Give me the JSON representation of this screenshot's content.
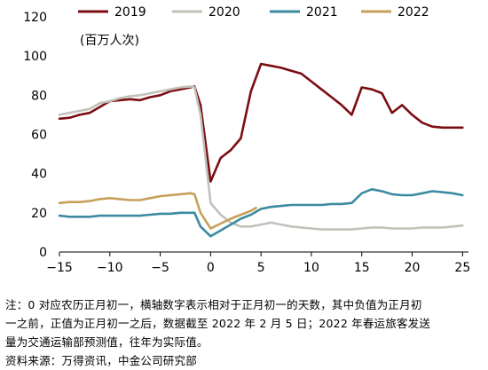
{
  "chart_data": {
    "type": "line",
    "title": "",
    "xlabel": "",
    "ylabel": "(百万人次)",
    "xlim": [
      -15,
      25.5
    ],
    "ylim": [
      0,
      120
    ],
    "x_ticks": [
      -15,
      -10,
      -5,
      0,
      5,
      10,
      15,
      20,
      25
    ],
    "x_tick_labels": [
      "−15",
      "−10",
      "−5",
      "0",
      "5",
      "10",
      "15",
      "20",
      "25"
    ],
    "y_ticks": [
      0,
      20,
      40,
      60,
      80,
      100,
      120
    ],
    "y_tick_labels": [
      "0",
      "20",
      "40",
      "60",
      "80",
      "100",
      "120"
    ],
    "grid": false,
    "legend_position": "top",
    "series": [
      {
        "name": "2019",
        "color": "#7b0d12",
        "points": [
          [
            -15,
            68
          ],
          [
            -14,
            68.5
          ],
          [
            -13,
            70
          ],
          [
            -12,
            71
          ],
          [
            -11,
            74
          ],
          [
            -10,
            77
          ],
          [
            -9,
            77.5
          ],
          [
            -8,
            78
          ],
          [
            -7,
            77.5
          ],
          [
            -6,
            79
          ],
          [
            -5,
            80
          ],
          [
            -4,
            82
          ],
          [
            -3,
            83
          ],
          [
            -2,
            84
          ],
          [
            -1.6,
            84.5
          ],
          [
            -1,
            75
          ],
          [
            0,
            36
          ],
          [
            1,
            48
          ],
          [
            2,
            52
          ],
          [
            3,
            58
          ],
          [
            4,
            82
          ],
          [
            5,
            96
          ],
          [
            6,
            95
          ],
          [
            7,
            94
          ],
          [
            8,
            92.5
          ],
          [
            9,
            91
          ],
          [
            10,
            87
          ],
          [
            11,
            83
          ],
          [
            12,
            79
          ],
          [
            13,
            75
          ],
          [
            14,
            70
          ],
          [
            15,
            84
          ],
          [
            16,
            83
          ],
          [
            17,
            81
          ],
          [
            18,
            71
          ],
          [
            19,
            75
          ],
          [
            20,
            70
          ],
          [
            21,
            66
          ],
          [
            22,
            64
          ],
          [
            23,
            63.5
          ],
          [
            24,
            63.5
          ],
          [
            25,
            63.5
          ]
        ]
      },
      {
        "name": "2020",
        "color": "#c2c2ba",
        "points": [
          [
            -15,
            70
          ],
          [
            -14,
            71
          ],
          [
            -13,
            72
          ],
          [
            -12,
            73
          ],
          [
            -11,
            76
          ],
          [
            -10,
            77
          ],
          [
            -9,
            78.5
          ],
          [
            -8,
            79.5
          ],
          [
            -7,
            80
          ],
          [
            -6,
            81
          ],
          [
            -5,
            82
          ],
          [
            -4,
            83
          ],
          [
            -3,
            84
          ],
          [
            -2,
            84.5
          ],
          [
            -1.6,
            84
          ],
          [
            -1,
            70
          ],
          [
            0,
            25
          ],
          [
            1,
            19
          ],
          [
            2,
            15
          ],
          [
            3,
            13
          ],
          [
            4,
            13
          ],
          [
            5,
            14
          ],
          [
            6,
            15
          ],
          [
            7,
            14
          ],
          [
            8,
            13
          ],
          [
            9,
            12.5
          ],
          [
            10,
            12
          ],
          [
            11,
            11.5
          ],
          [
            12,
            11.5
          ],
          [
            13,
            11.5
          ],
          [
            14,
            11.5
          ],
          [
            15,
            12
          ],
          [
            16,
            12.5
          ],
          [
            17,
            12.5
          ],
          [
            18,
            12
          ],
          [
            19,
            12
          ],
          [
            20,
            12
          ],
          [
            21,
            12.5
          ],
          [
            22,
            12.5
          ],
          [
            23,
            12.5
          ],
          [
            24,
            13
          ],
          [
            25,
            13.5
          ]
        ]
      },
      {
        "name": "2021",
        "color": "#3b8ba1",
        "points": [
          [
            -15,
            18.5
          ],
          [
            -14,
            18
          ],
          [
            -13,
            18
          ],
          [
            -12,
            18
          ],
          [
            -11,
            18.5
          ],
          [
            -10,
            18.5
          ],
          [
            -9,
            18.5
          ],
          [
            -8,
            18.5
          ],
          [
            -7,
            18.5
          ],
          [
            -6,
            19
          ],
          [
            -5,
            19.5
          ],
          [
            -4,
            19.5
          ],
          [
            -3,
            20
          ],
          [
            -2,
            20
          ],
          [
            -1.6,
            20
          ],
          [
            -1,
            13
          ],
          [
            0,
            8
          ],
          [
            1,
            11
          ],
          [
            2,
            14
          ],
          [
            3,
            17
          ],
          [
            4,
            19
          ],
          [
            5,
            22
          ],
          [
            6,
            23
          ],
          [
            7,
            23.5
          ],
          [
            8,
            24
          ],
          [
            9,
            24
          ],
          [
            10,
            24
          ],
          [
            11,
            24
          ],
          [
            12,
            24.5
          ],
          [
            13,
            24.5
          ],
          [
            14,
            25
          ],
          [
            15,
            30
          ],
          [
            16,
            32
          ],
          [
            17,
            31
          ],
          [
            18,
            29.5
          ],
          [
            19,
            29
          ],
          [
            20,
            29
          ],
          [
            21,
            30
          ],
          [
            22,
            31
          ],
          [
            23,
            30.5
          ],
          [
            24,
            30
          ],
          [
            25,
            29
          ]
        ]
      },
      {
        "name": "2022",
        "color": "#c6a05a",
        "points": [
          [
            -15,
            25
          ],
          [
            -14,
            25.5
          ],
          [
            -13,
            25.5
          ],
          [
            -12,
            26
          ],
          [
            -11,
            27
          ],
          [
            -10,
            27.5
          ],
          [
            -9,
            27
          ],
          [
            -8,
            26.5
          ],
          [
            -7,
            26.5
          ],
          [
            -6,
            27.5
          ],
          [
            -5,
            28.5
          ],
          [
            -4,
            29
          ],
          [
            -3,
            29.5
          ],
          [
            -2,
            30
          ],
          [
            -1.6,
            29.5
          ],
          [
            -1,
            20
          ],
          [
            0,
            12
          ],
          [
            1,
            14.5
          ],
          [
            2,
            17
          ],
          [
            3,
            19
          ],
          [
            4,
            21
          ],
          [
            4.5,
            22.5
          ]
        ]
      }
    ]
  },
  "note": {
    "line1": "注：0 对应农历正月初一，横轴数字表示相对于正月初一的天数，其中负值为正月初",
    "line2": "一之前，正值为正月初一之后，数据截至 2022 年 2 月 5 日；2022 年春运旅客发送",
    "line3": "量为交通运输部预测值，往年为实际值。",
    "source": "资料来源：万得资讯，中金公司研究部"
  }
}
